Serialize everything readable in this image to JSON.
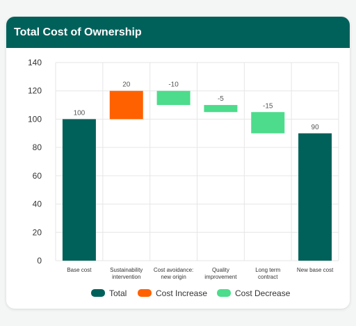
{
  "card": {
    "title": "Total Cost of Ownership"
  },
  "chart_data": {
    "type": "bar",
    "subtype": "waterfall",
    "title": "Total Cost of Ownership",
    "xlabel": "",
    "ylabel": "",
    "ylim": [
      0,
      140
    ],
    "yticks": [
      0,
      20,
      40,
      60,
      80,
      100,
      120,
      140
    ],
    "grid": true,
    "legend_position": "bottom",
    "bars": [
      {
        "label": [
          "Base cost"
        ],
        "start": 0,
        "end": 100,
        "data_label": "100",
        "kind": "total"
      },
      {
        "label": [
          "Sustainability",
          "intervention"
        ],
        "start": 100,
        "end": 120,
        "data_label": "20",
        "kind": "increase"
      },
      {
        "label": [
          "Cost avoidance:",
          "new origin"
        ],
        "start": 120,
        "end": 110,
        "data_label": "-10",
        "kind": "decrease"
      },
      {
        "label": [
          "Quality",
          "improvement"
        ],
        "start": 110,
        "end": 105,
        "data_label": "-5",
        "kind": "decrease"
      },
      {
        "label": [
          "Long term",
          "contract"
        ],
        "start": 105,
        "end": 90,
        "data_label": "-15",
        "kind": "decrease"
      },
      {
        "label": [
          "New base cost"
        ],
        "start": 0,
        "end": 90,
        "data_label": "90",
        "kind": "total"
      }
    ],
    "legend": [
      {
        "kind": "total",
        "label": "Total"
      },
      {
        "kind": "increase",
        "label": "Cost Increase"
      },
      {
        "kind": "decrease",
        "label": "Cost Decrease"
      }
    ],
    "colors": {
      "total": "#00615b",
      "increase": "#ff6100",
      "decrease": "#4cdc8b"
    }
  }
}
